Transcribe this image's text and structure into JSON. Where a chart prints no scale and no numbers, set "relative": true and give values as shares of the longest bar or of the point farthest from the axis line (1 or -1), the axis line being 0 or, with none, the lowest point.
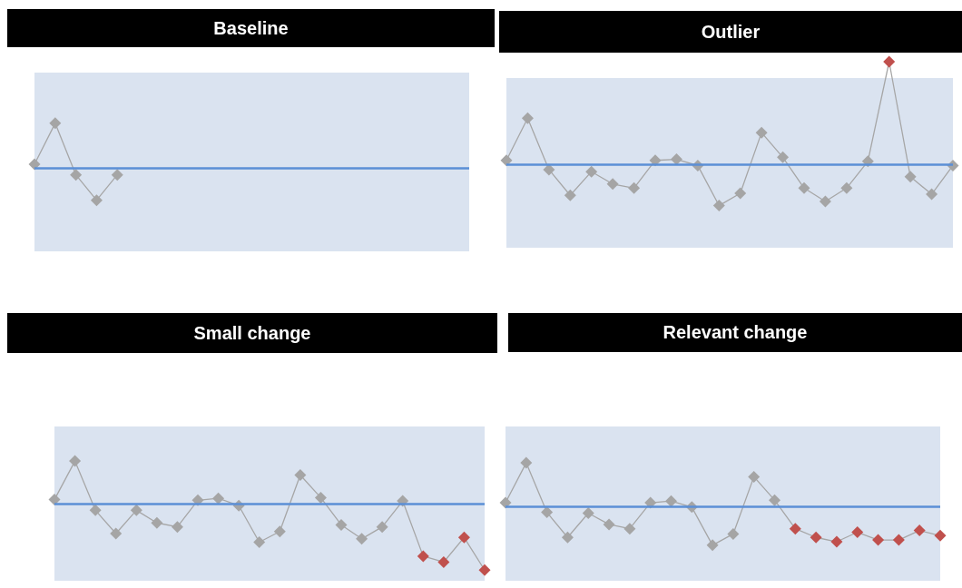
{
  "chart_data": [
    {
      "type": "line",
      "title": "Baseline",
      "relative": true,
      "marker": "diamond",
      "categories": [
        null,
        null,
        null,
        null,
        null,
        null,
        null,
        null,
        null,
        null,
        null,
        null,
        null,
        null,
        null,
        null,
        null,
        null,
        null,
        null,
        null,
        null
      ],
      "series": [
        {
          "color": "#a6a6a6",
          "values": [
            0.08,
            1,
            -0.16,
            -0.73,
            -0.16,
            null,
            null,
            null,
            null,
            null,
            null,
            null,
            null,
            null,
            null,
            null,
            null,
            null,
            null,
            null,
            null,
            null
          ],
          "colors": [
            "#a5a5a5",
            "#a5a5a5",
            "#a5a5a5",
            "#a5a5a5",
            "#a5a5a5",
            null,
            null,
            null,
            null,
            null,
            null,
            null,
            null,
            null,
            null,
            null,
            null,
            null,
            null,
            null,
            null,
            null
          ]
        }
      ],
      "ref_lines": [
        {
          "axis": "y",
          "value": 0,
          "color": "#5b8fd6"
        }
      ],
      "bands": [
        {
          "axis": "y",
          "from": -1.88,
          "to": 2.14,
          "color": "#dae3f0"
        }
      ]
    },
    {
      "type": "line",
      "title": "Outlier",
      "relative": true,
      "marker": "diamond",
      "categories": [
        null,
        null,
        null,
        null,
        null,
        null,
        null,
        null,
        null,
        null,
        null,
        null,
        null,
        null,
        null,
        null,
        null,
        null,
        null,
        null,
        null,
        null
      ],
      "series": [
        {
          "color": "#a6a6a6",
          "values": [
            0.04,
            0.45,
            -0.05,
            -0.3,
            -0.07,
            -0.19,
            -0.23,
            0.04,
            0.05,
            -0.01,
            -0.4,
            -0.28,
            0.31,
            0.07,
            -0.23,
            -0.36,
            -0.23,
            0.03,
            1,
            -0.12,
            -0.29,
            -0.01
          ],
          "colors": [
            "#a5a5a5",
            "#a5a5a5",
            "#a5a5a5",
            "#a5a5a5",
            "#a5a5a5",
            "#a5a5a5",
            "#a5a5a5",
            "#a5a5a5",
            "#a5a5a5",
            "#a5a5a5",
            "#a5a5a5",
            "#a5a5a5",
            "#a5a5a5",
            "#a5a5a5",
            "#a5a5a5",
            "#a5a5a5",
            "#a5a5a5",
            "#a5a5a5",
            "#c0504d",
            "#a5a5a5",
            "#a5a5a5",
            "#a5a5a5"
          ]
        }
      ],
      "ref_lines": [
        {
          "axis": "y",
          "value": 0,
          "color": "#5b8fd6"
        }
      ],
      "bands": [
        {
          "axis": "y",
          "from": -0.81,
          "to": 0.84,
          "color": "#dae3f0"
        }
      ]
    },
    {
      "type": "line",
      "title": "Small change",
      "relative": true,
      "marker": "diamond",
      "categories": [
        null,
        null,
        null,
        null,
        null,
        null,
        null,
        null,
        null,
        null,
        null,
        null,
        null,
        null,
        null,
        null,
        null,
        null,
        null,
        null,
        null,
        null
      ],
      "series": [
        {
          "color": "#a6a6a6",
          "values": [
            0.06,
            0.64,
            -0.1,
            -0.45,
            -0.1,
            -0.29,
            -0.35,
            0.05,
            0.08,
            -0.03,
            -0.58,
            -0.42,
            0.43,
            0.09,
            -0.32,
            -0.53,
            -0.35,
            0.04,
            -0.79,
            -0.88,
            -0.51,
            -1
          ],
          "colors": [
            "#a5a5a5",
            "#a5a5a5",
            "#a5a5a5",
            "#a5a5a5",
            "#a5a5a5",
            "#a5a5a5",
            "#a5a5a5",
            "#a5a5a5",
            "#a5a5a5",
            "#a5a5a5",
            "#a5a5a5",
            "#a5a5a5",
            "#a5a5a5",
            "#a5a5a5",
            "#a5a5a5",
            "#a5a5a5",
            "#a5a5a5",
            "#a5a5a5",
            "#c0504d",
            "#c0504d",
            "#c0504d",
            "#c0504d"
          ]
        }
      ],
      "ref_lines": [
        {
          "axis": "y",
          "value": 0,
          "color": "#5b8fd6"
        }
      ],
      "bands": [
        {
          "axis": "y",
          "from": -1.16,
          "to": 1.16,
          "color": "#dae3f0"
        }
      ]
    },
    {
      "type": "line",
      "title": "Relevant change",
      "relative": true,
      "marker": "diamond",
      "categories": [
        null,
        null,
        null,
        null,
        null,
        null,
        null,
        null,
        null,
        null,
        null,
        null,
        null,
        null,
        null,
        null,
        null,
        null,
        null,
        null,
        null,
        null
      ],
      "series": [
        {
          "color": "#a6a6a6",
          "values": [
            0.08,
            1,
            -0.14,
            -0.72,
            -0.16,
            -0.42,
            -0.52,
            0.08,
            0.12,
            -0.02,
            -0.9,
            -0.64,
            0.68,
            0.14,
            -0.52,
            -0.72,
            -0.82,
            -0.6,
            -0.78,
            -0.78,
            -0.56,
            -0.68
          ],
          "colors": [
            "#a5a5a5",
            "#a5a5a5",
            "#a5a5a5",
            "#a5a5a5",
            "#a5a5a5",
            "#a5a5a5",
            "#a5a5a5",
            "#a5a5a5",
            "#a5a5a5",
            "#a5a5a5",
            "#a5a5a5",
            "#a5a5a5",
            "#a5a5a5",
            "#a5a5a5",
            "#c0504d",
            "#c0504d",
            "#c0504d",
            "#c0504d",
            "#c0504d",
            "#c0504d",
            "#c0504d",
            "#c0504d"
          ]
        }
      ],
      "ref_lines": [
        {
          "axis": "y",
          "value": 0,
          "color": "#5b8fd6"
        }
      ],
      "bands": [
        {
          "axis": "y",
          "from": -1.72,
          "to": 1.84,
          "color": "#dae3f0"
        }
      ]
    }
  ]
}
